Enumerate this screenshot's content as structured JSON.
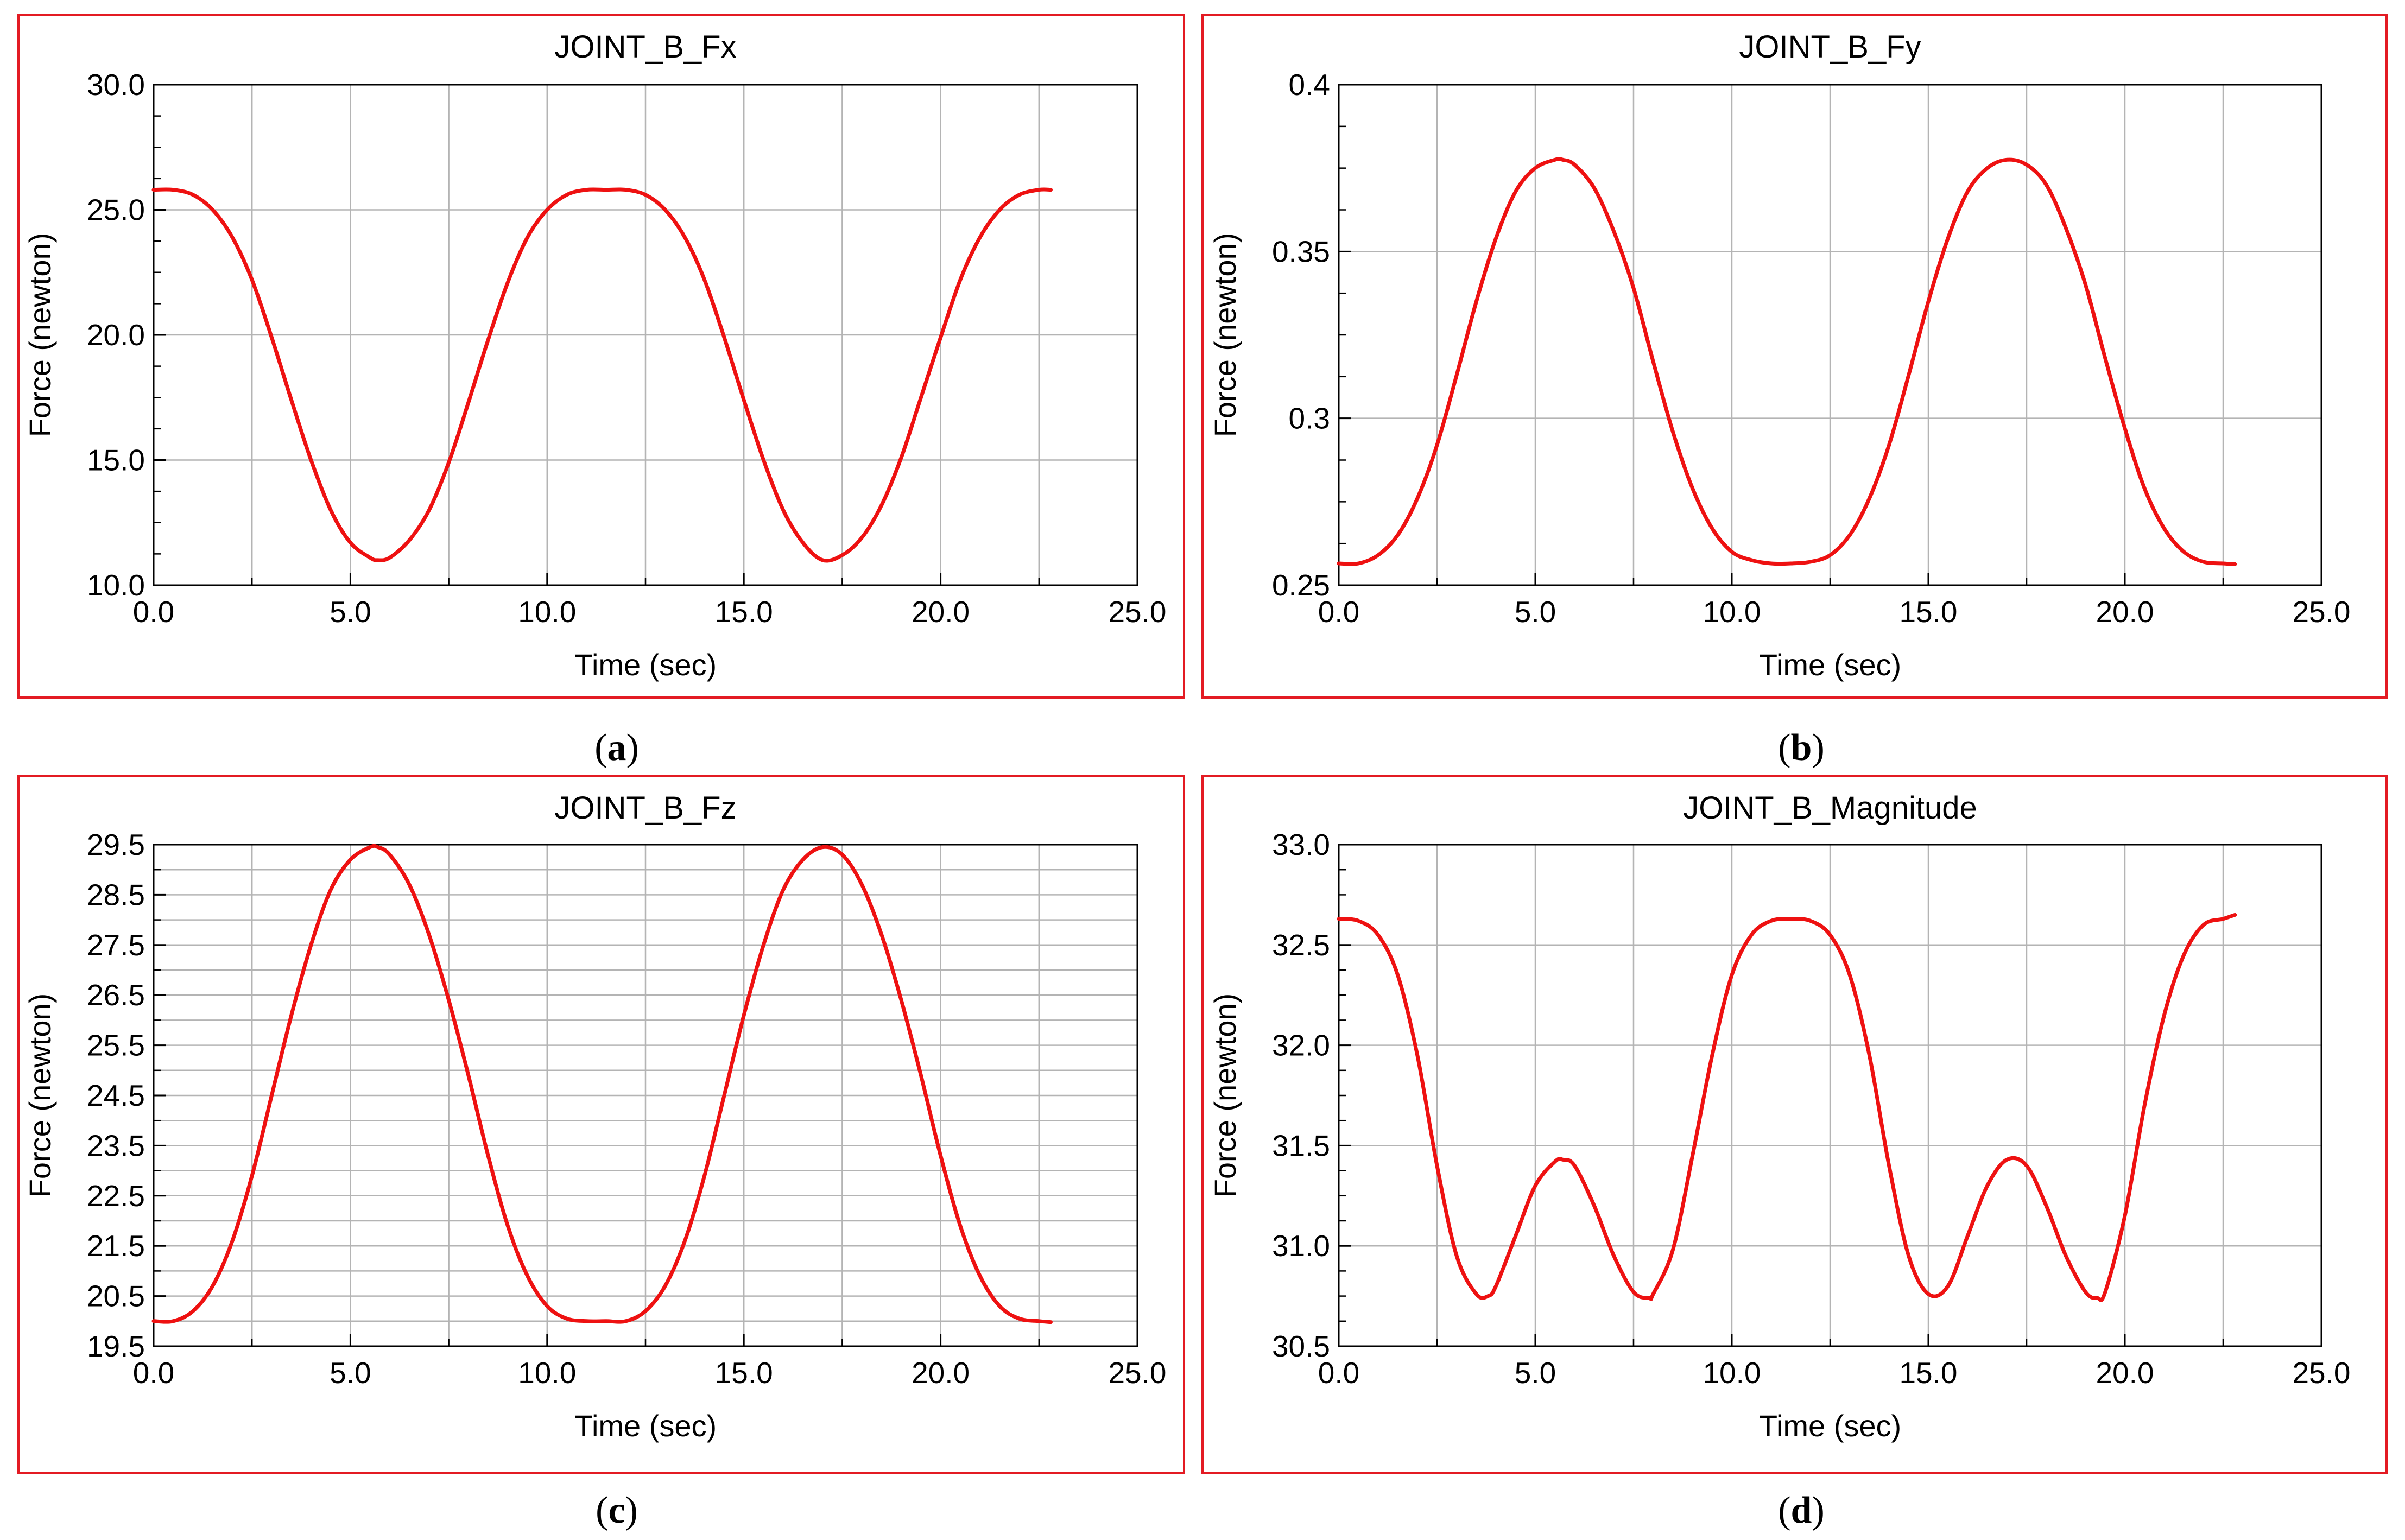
{
  "figure": {
    "captions": [
      "a",
      "b",
      "c",
      "d"
    ]
  },
  "chart_data": [
    {
      "type": "line",
      "title": "JOINT_B_Fx",
      "xlabel": "Time (sec)",
      "ylabel": "Force (newton)",
      "xlim": [
        0,
        25
      ],
      "ylim": [
        10,
        30
      ],
      "xticks": [
        "0.0",
        "5.0",
        "10.0",
        "15.0",
        "20.0",
        "25.0"
      ],
      "yticks": [
        "10.0",
        "15.0",
        "20.0",
        "25.0",
        "30.0"
      ],
      "grid": true,
      "series": [
        {
          "name": "JOINT_B_Fx",
          "color": "#ee1111",
          "x": [
            0,
            0.5,
            1.0,
            1.5,
            2.0,
            2.5,
            3.0,
            3.5,
            4.0,
            4.5,
            5.0,
            5.5,
            5.7,
            6.0,
            6.5,
            7.0,
            7.5,
            8.0,
            8.5,
            9.0,
            9.5,
            10.0,
            10.5,
            11.0,
            11.5,
            12.0,
            12.5,
            13.0,
            13.5,
            14.0,
            14.5,
            15.0,
            15.5,
            16.0,
            16.5,
            17.0,
            17.5,
            18.0,
            18.5,
            19.0,
            19.5,
            20.0,
            20.5,
            21.0,
            21.5,
            22.0,
            22.5,
            22.8
          ],
          "values": [
            25.8,
            25.8,
            25.6,
            25.0,
            23.9,
            22.2,
            19.9,
            17.4,
            15.0,
            13.0,
            11.7,
            11.1,
            11.0,
            11.1,
            11.8,
            13.0,
            14.9,
            17.3,
            19.8,
            22.1,
            23.9,
            25.0,
            25.6,
            25.8,
            25.8,
            25.8,
            25.6,
            25.0,
            23.9,
            22.2,
            19.9,
            17.4,
            15.0,
            13.0,
            11.7,
            11.0,
            11.2,
            11.9,
            13.2,
            15.1,
            17.5,
            19.9,
            22.2,
            23.9,
            25.0,
            25.6,
            25.8,
            25.8
          ]
        }
      ]
    },
    {
      "type": "line",
      "title": "JOINT_B_Fy",
      "xlabel": "Time (sec)",
      "ylabel": "Force (newton)",
      "xlim": [
        0,
        25
      ],
      "ylim": [
        0.25,
        0.4
      ],
      "xticks": [
        "0.0",
        "5.0",
        "10.0",
        "15.0",
        "20.0",
        "25.0"
      ],
      "yticks": [
        "0.25",
        "0.3",
        "0.35",
        "0.4"
      ],
      "grid": true,
      "series": [
        {
          "name": "JOINT_B_Fy",
          "color": "#ee1111",
          "x": [
            0,
            0.5,
            1.0,
            1.5,
            2.0,
            2.5,
            3.0,
            3.5,
            4.0,
            4.5,
            5.0,
            5.5,
            5.7,
            6.0,
            6.5,
            7.0,
            7.5,
            8.0,
            8.5,
            9.0,
            9.5,
            10.0,
            10.5,
            11.0,
            11.5,
            12.0,
            12.5,
            13.0,
            13.5,
            14.0,
            14.5,
            15.0,
            15.5,
            16.0,
            16.5,
            17.0,
            17.5,
            18.0,
            18.5,
            19.0,
            19.5,
            20.0,
            20.5,
            21.0,
            21.5,
            22.0,
            22.5,
            22.8
          ],
          "values": [
            0.2565,
            0.2565,
            0.259,
            0.265,
            0.276,
            0.292,
            0.313,
            0.335,
            0.354,
            0.368,
            0.375,
            0.3775,
            0.3775,
            0.376,
            0.369,
            0.356,
            0.339,
            0.317,
            0.296,
            0.279,
            0.267,
            0.26,
            0.2575,
            0.2565,
            0.2565,
            0.257,
            0.259,
            0.265,
            0.276,
            0.292,
            0.313,
            0.335,
            0.354,
            0.368,
            0.375,
            0.3775,
            0.376,
            0.37,
            0.357,
            0.34,
            0.318,
            0.297,
            0.279,
            0.267,
            0.26,
            0.257,
            0.2565,
            0.2563
          ]
        }
      ]
    },
    {
      "type": "line",
      "title": "JOINT_B_Fz",
      "xlabel": "Time (sec)",
      "ylabel": "Force (newton)",
      "xlim": [
        0,
        25
      ],
      "ylim": [
        19.5,
        29.5
      ],
      "xticks": [
        "0.0",
        "5.0",
        "10.0",
        "15.0",
        "20.0",
        "25.0"
      ],
      "yticks": [
        "19.5",
        "20.5",
        "21.5",
        "22.5",
        "23.5",
        "24.5",
        "25.5",
        "26.5",
        "27.5",
        "28.5",
        "29.5"
      ],
      "grid": true,
      "series": [
        {
          "name": "JOINT_B_Fz",
          "color": "#ee1111",
          "x": [
            0,
            0.5,
            1.0,
            1.5,
            2.0,
            2.5,
            3.0,
            3.5,
            4.0,
            4.5,
            5.0,
            5.5,
            5.7,
            6.0,
            6.5,
            7.0,
            7.5,
            8.0,
            8.5,
            9.0,
            9.5,
            10.0,
            10.5,
            11.0,
            11.5,
            12.0,
            12.5,
            13.0,
            13.5,
            14.0,
            14.5,
            15.0,
            15.5,
            16.0,
            16.5,
            17.0,
            17.5,
            18.0,
            18.5,
            19.0,
            19.5,
            20.0,
            20.5,
            21.0,
            21.5,
            22.0,
            22.5,
            22.8
          ],
          "values": [
            20.0,
            20.0,
            20.2,
            20.7,
            21.6,
            22.9,
            24.5,
            26.1,
            27.5,
            28.6,
            29.2,
            29.45,
            29.45,
            29.3,
            28.7,
            27.7,
            26.4,
            24.9,
            23.3,
            21.9,
            20.9,
            20.3,
            20.05,
            20.0,
            20.0,
            20.0,
            20.2,
            20.7,
            21.6,
            22.9,
            24.5,
            26.1,
            27.5,
            28.6,
            29.2,
            29.45,
            29.3,
            28.7,
            27.7,
            26.4,
            24.9,
            23.3,
            21.9,
            20.9,
            20.3,
            20.05,
            20.0,
            19.98
          ]
        }
      ]
    },
    {
      "type": "line",
      "title": "JOINT_B_Magnitude",
      "xlabel": "Time (sec)",
      "ylabel": "Force (newton)",
      "xlim": [
        0,
        25
      ],
      "ylim": [
        30.5,
        33.0
      ],
      "xticks": [
        "0.0",
        "5.0",
        "10.0",
        "15.0",
        "20.0",
        "25.0"
      ],
      "yticks": [
        "30.5",
        "31.0",
        "31.5",
        "32.0",
        "32.5",
        "33.0"
      ],
      "grid": true,
      "series": [
        {
          "name": "JOINT_B_Magnitude",
          "color": "#ee1111",
          "x": [
            0,
            0.5,
            1.0,
            1.5,
            2.0,
            2.5,
            3.0,
            3.5,
            3.8,
            4.0,
            4.5,
            5.0,
            5.5,
            5.7,
            6.0,
            6.5,
            7.0,
            7.5,
            7.9,
            8.0,
            8.5,
            9.0,
            9.5,
            10.0,
            10.5,
            11.0,
            11.5,
            12.0,
            12.5,
            13.0,
            13.5,
            14.0,
            14.5,
            15.0,
            15.5,
            16.0,
            16.5,
            17.0,
            17.5,
            18.0,
            18.5,
            19.0,
            19.3,
            19.5,
            20.0,
            20.5,
            21.0,
            21.5,
            22.0,
            22.5,
            22.8
          ],
          "values": [
            32.63,
            32.62,
            32.55,
            32.35,
            31.95,
            31.4,
            30.95,
            30.76,
            30.75,
            30.8,
            31.05,
            31.3,
            31.42,
            31.43,
            31.4,
            31.2,
            30.95,
            30.77,
            30.74,
            30.76,
            30.98,
            31.45,
            31.95,
            32.35,
            32.55,
            32.62,
            32.63,
            32.62,
            32.55,
            32.35,
            31.95,
            31.4,
            30.95,
            30.76,
            30.8,
            31.05,
            31.3,
            31.43,
            31.4,
            31.2,
            30.95,
            30.77,
            30.74,
            30.77,
            31.15,
            31.7,
            32.15,
            32.45,
            32.6,
            32.63,
            32.65
          ]
        }
      ]
    }
  ]
}
